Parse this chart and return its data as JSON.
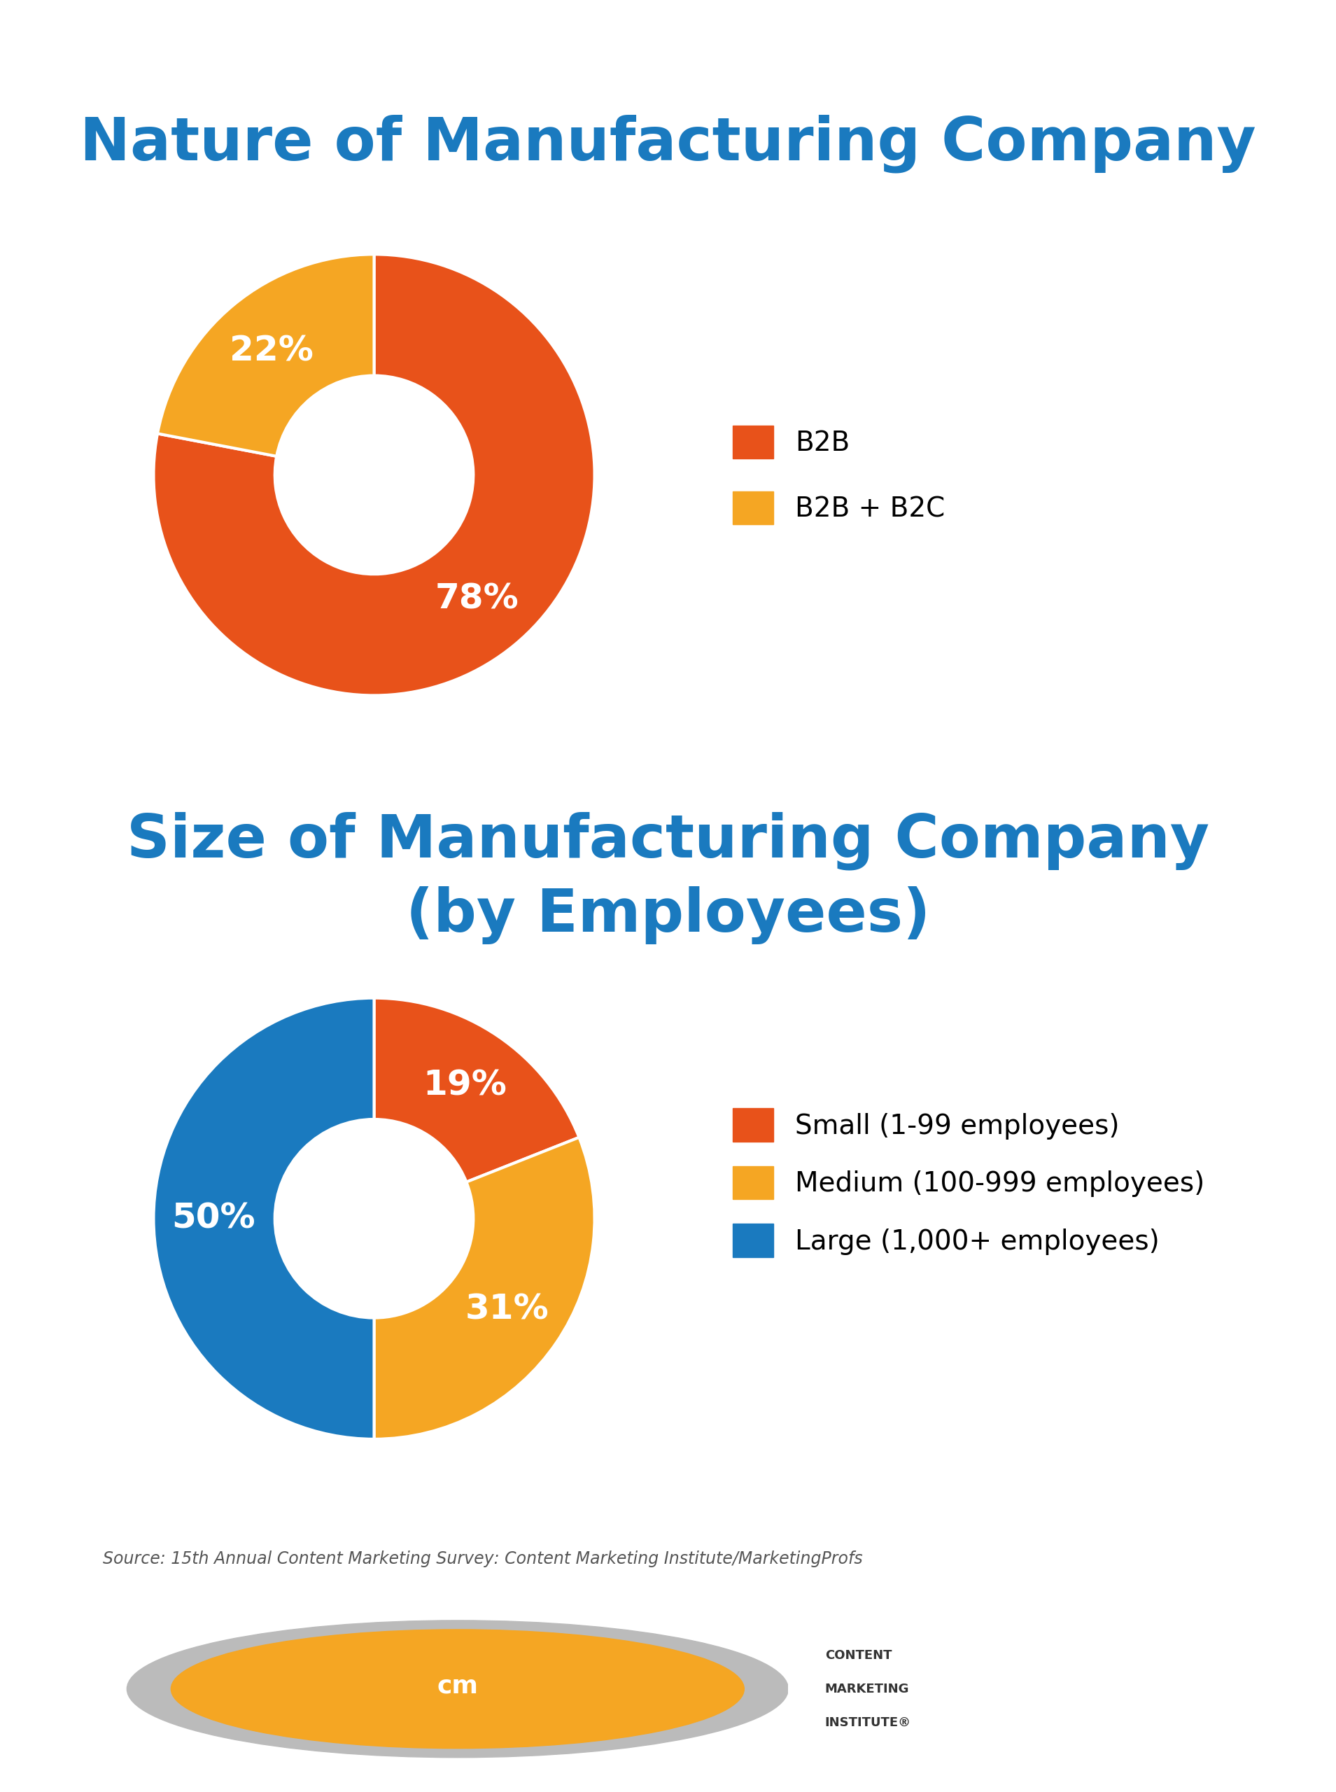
{
  "title1": "Nature of Manufacturing Company",
  "title2": "Size of Manufacturing Company\n(by Employees)",
  "title_color": "#1a7abf",
  "bg_color": "#ffffff",
  "donut1_values": [
    78,
    22
  ],
  "donut1_colors": [
    "#e8521a",
    "#f5a623"
  ],
  "donut1_labels": [
    "78%",
    "22%"
  ],
  "donut1_legend_labels": [
    "B2B",
    "B2B + B2C"
  ],
  "donut1_legend_colors": [
    "#e8521a",
    "#f5a623"
  ],
  "donut2_values": [
    19,
    31,
    50
  ],
  "donut2_colors": [
    "#e8521a",
    "#f5a623",
    "#1a7abf"
  ],
  "donut2_labels": [
    "19%",
    "31%",
    "50%"
  ],
  "donut2_legend_labels": [
    "Small (1-99 employees)",
    "Medium (100-999 employees)",
    "Large (1,000+ employees)"
  ],
  "donut2_legend_colors": [
    "#e8521a",
    "#f5a623",
    "#1a7abf"
  ],
  "source_text": "Source: 15th Annual Content Marketing Survey: Content Marketing Institute/MarketingProfs",
  "label_fontsize": 36,
  "title_fontsize": 62,
  "legend_fontsize": 28
}
